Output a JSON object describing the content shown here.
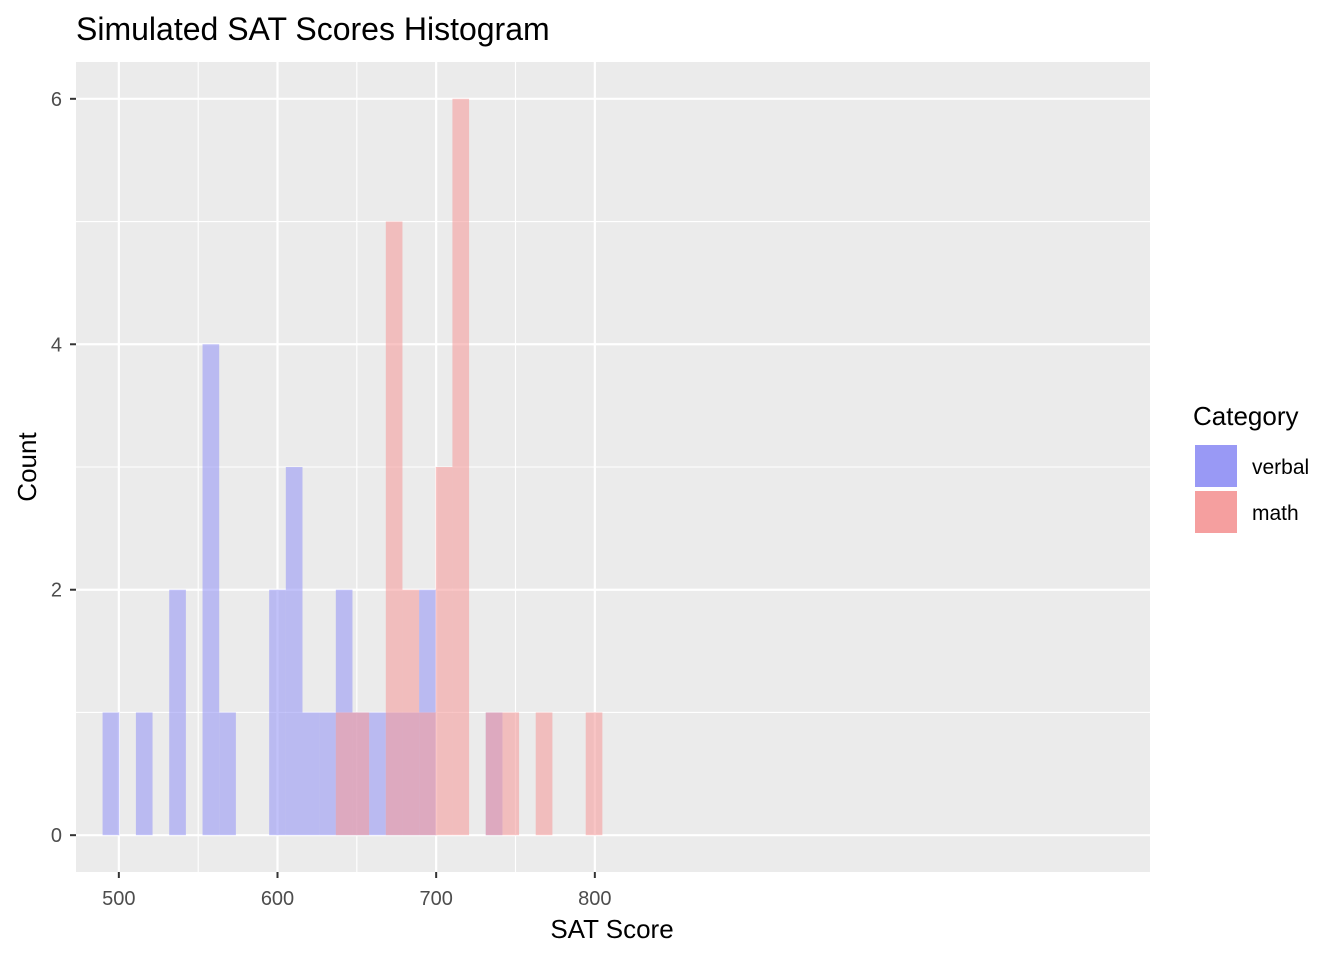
{
  "chart_data": {
    "type": "bar",
    "title": "Simulated SAT Scores Histogram",
    "xlabel": "SAT Score",
    "ylabel": "Count",
    "xlim": [
      473,
      1149.9
    ],
    "ylim": [
      -0.3,
      6.3
    ],
    "xticks": [
      500,
      600,
      700,
      800
    ],
    "yticks": [
      0,
      2,
      4,
      6
    ],
    "binwidth": 10.5,
    "grid": true,
    "legend": {
      "title": "Category",
      "placement": "right",
      "entries": [
        {
          "label": "verbal",
          "color": "#9999f5"
        },
        {
          "label": "math",
          "color": "#f59f9f"
        }
      ]
    },
    "series": [
      {
        "name": "verbal",
        "color": "#9999f5",
        "bins": [
          {
            "x": 495.0,
            "count": 1
          },
          {
            "x": 516.0,
            "count": 1
          },
          {
            "x": 537.0,
            "count": 2
          },
          {
            "x": 558.0,
            "count": 4
          },
          {
            "x": 568.5,
            "count": 1
          },
          {
            "x": 600.0,
            "count": 2
          },
          {
            "x": 610.5,
            "count": 3
          },
          {
            "x": 621.0,
            "count": 1
          },
          {
            "x": 631.5,
            "count": 1
          },
          {
            "x": 642.0,
            "count": 2
          },
          {
            "x": 652.5,
            "count": 1
          },
          {
            "x": 663.0,
            "count": 1
          },
          {
            "x": 673.5,
            "count": 1
          },
          {
            "x": 684.0,
            "count": 1
          },
          {
            "x": 694.5,
            "count": 2
          },
          {
            "x": 736.5,
            "count": 1
          }
        ]
      },
      {
        "name": "math",
        "color": "#f59f9f",
        "bins": [
          {
            "x": 642.0,
            "count": 1
          },
          {
            "x": 652.5,
            "count": 1
          },
          {
            "x": 673.5,
            "count": 5
          },
          {
            "x": 684.0,
            "count": 2
          },
          {
            "x": 694.5,
            "count": 1
          },
          {
            "x": 705.0,
            "count": 3
          },
          {
            "x": 715.5,
            "count": 6
          },
          {
            "x": 736.5,
            "count": 1
          },
          {
            "x": 747.0,
            "count": 1
          },
          {
            "x": 768.0,
            "count": 1
          },
          {
            "x": 799.5,
            "count": 1
          }
        ]
      }
    ]
  },
  "colors": {
    "panel": "#ebebeb",
    "grid_major": "#ffffff",
    "verbal": "#9999f5",
    "math": "#f59f9f"
  }
}
